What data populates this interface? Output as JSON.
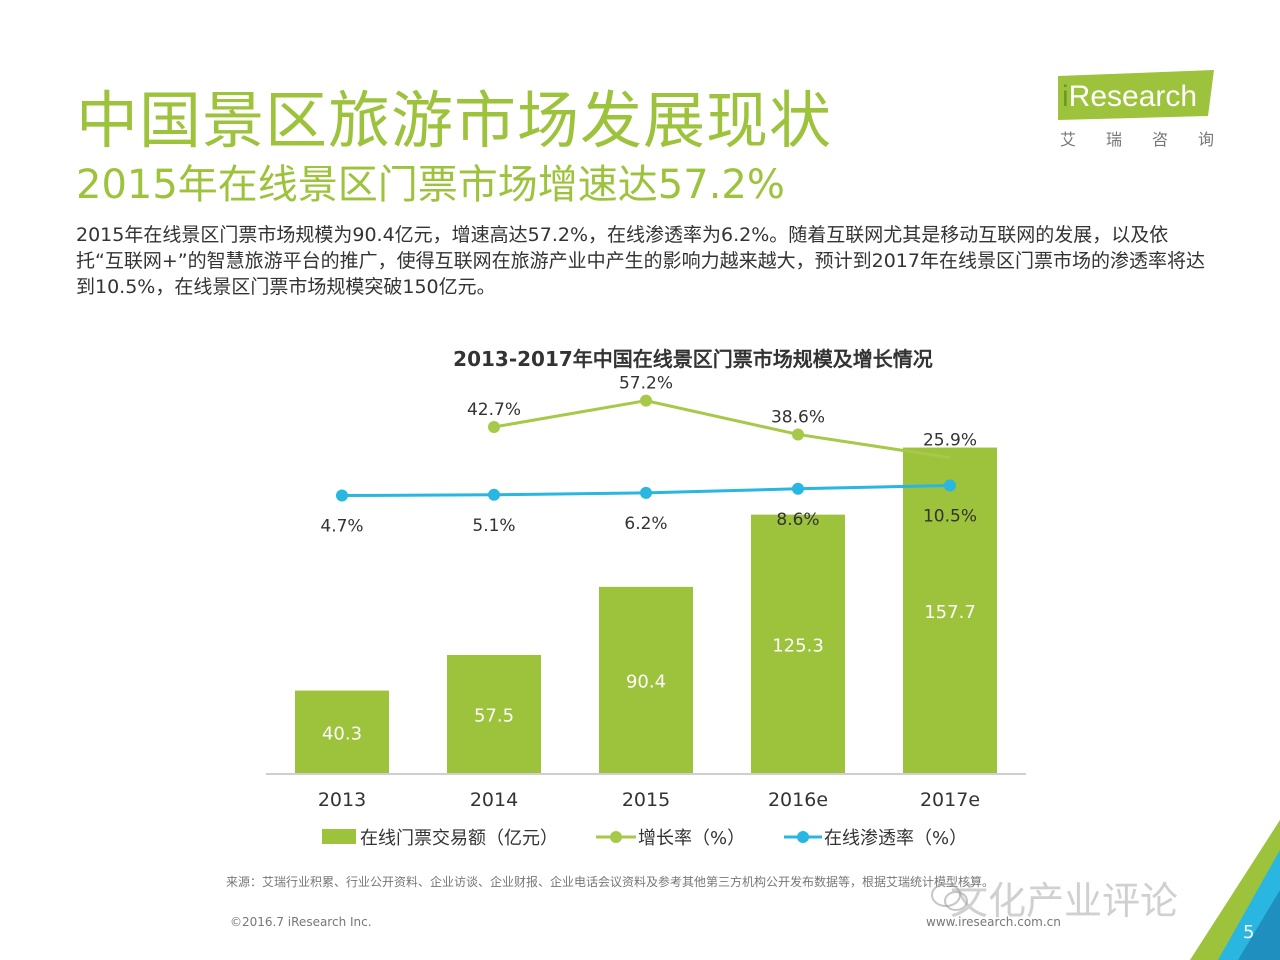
{
  "page": {
    "title": "中国景区旅游市场发展现状",
    "subtitle": "2015年在线景区门票市场增速达57.2%",
    "body": "2015年在线景区门票市场规模为90.4亿元，增速高达57.2%，在线渗透率为6.2%。随着互联网尤其是移动互联网的发展，以及依托“互联网+”的智慧旅游平台的推广，使得互联网在旅游产业中产生的影响力越来越大，预计到2017年在线景区门票市场的渗透率将达到10.5%，在线景区门票市场规模突破150亿元。",
    "page_number": "5"
  },
  "logo": {
    "word_i": "i",
    "word_rest": "Research",
    "cn": "艾瑞咨询"
  },
  "footer": {
    "source": "来源：艾瑞行业积累、行业公开资料、企业访谈、企业财报、企业电话会议资料及参考其他第三方机构公开发布数据等，根据艾瑞统计模型核算。",
    "copyright": "©2016.7 iResearch Inc.",
    "url": "www.iresearch.com.cn",
    "watermark": "文化产业评论"
  },
  "colors": {
    "accent": "#9dc23c",
    "bar": "#9dc23c",
    "growth_line": "#a6c94a",
    "penetration_line": "#29b6e0"
  },
  "chart_data": {
    "type": "bar",
    "title": "2013-2017年中国在线景区门票市场规模及增长情况",
    "categories": [
      "2013",
      "2014",
      "2015",
      "2016e",
      "2017e"
    ],
    "series": [
      {
        "name": "在线门票交易额（亿元）",
        "type": "bar",
        "values": [
          40.3,
          57.5,
          90.4,
          125.3,
          157.7
        ],
        "labels": [
          "40.3",
          "57.5",
          "90.4",
          "125.3",
          "157.7"
        ]
      },
      {
        "name": "增长率（%）",
        "type": "line",
        "values": [
          null,
          42.7,
          57.2,
          38.6,
          25.9
        ],
        "labels": [
          "",
          "42.7%",
          "57.2%",
          "38.6%",
          "25.9%"
        ]
      },
      {
        "name": "在线渗透率（%）",
        "type": "line",
        "values": [
          4.7,
          5.1,
          6.2,
          8.6,
          10.5
        ],
        "labels": [
          "4.7%",
          "5.1%",
          "6.2%",
          "8.6%",
          "10.5%"
        ]
      }
    ],
    "legend": "bottom",
    "grid": false
  }
}
